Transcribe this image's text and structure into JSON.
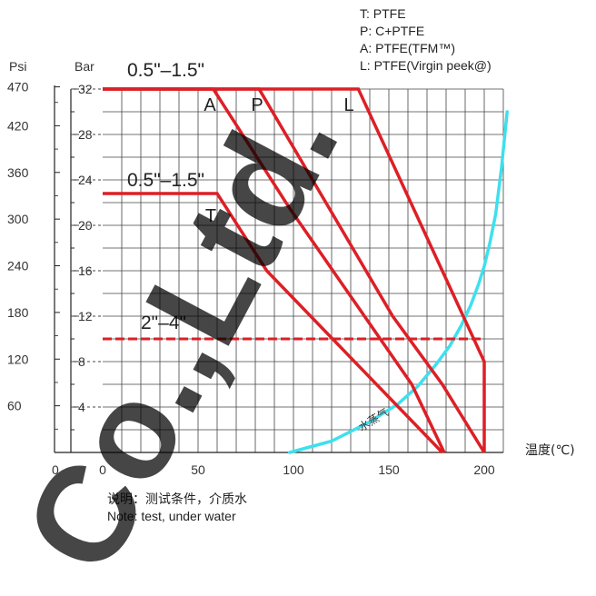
{
  "legend": [
    "T: PTFE",
    "P: C+PTFE",
    "A: PTFE(TFM™)",
    "L: PTFE(Virgin peek@)"
  ],
  "note": {
    "line1": "说明：测试条件，介质水",
    "line2": "Note: test, under water"
  },
  "watermark": "Co.,Ltd.",
  "colors": {
    "rating_lines": "#dd1f26",
    "steam_curve": "#3ee0ee",
    "grid": "#444444"
  },
  "chart_data": {
    "type": "line",
    "xlabel": "温度(℃)",
    "ylabel_left": "Psi",
    "ylabel_right": "Bar",
    "xlim": [
      0,
      210
    ],
    "ylim": [
      0,
      32
    ],
    "x_ticks": [
      0,
      50,
      100,
      150,
      200
    ],
    "bar_ticks": [
      4,
      8,
      12,
      16,
      20,
      24,
      28,
      32
    ],
    "psi_ticks": [
      60,
      120,
      180,
      240,
      300,
      360,
      420,
      470
    ],
    "psi_zero_label": "0",
    "grid": true,
    "series": [
      {
        "name": "T",
        "label": "T",
        "x": [
          0,
          60,
          86,
          178
        ],
        "y": [
          22.8,
          22.8,
          16,
          0
        ]
      },
      {
        "name": "A",
        "label": "A",
        "x": [
          0,
          58,
          98,
          162,
          179
        ],
        "y": [
          32,
          32,
          21.5,
          6,
          0
        ]
      },
      {
        "name": "P",
        "label": "P",
        "x": [
          0,
          82,
          152,
          178,
          200
        ],
        "y": [
          32,
          32,
          12,
          6,
          0
        ]
      },
      {
        "name": "L",
        "label": "L",
        "x": [
          0,
          134,
          200,
          200
        ],
        "y": [
          32,
          32,
          8,
          0
        ]
      },
      {
        "name": "",
        "label": "",
        "x": [
          0,
          200
        ],
        "y": [
          10,
          10
        ],
        "dashed": true
      }
    ],
    "range_labels": [
      {
        "text": "0.5\"–1.5\"",
        "x": 12,
        "y": 32
      },
      {
        "text": "0.5\"–1.5\"",
        "x": 12,
        "y": 22.8
      },
      {
        "text": "2\"–4\"",
        "x": 17,
        "y": 10
      }
    ],
    "steam_curve": {
      "label": "水蒸气",
      "x": [
        98,
        120,
        140,
        155,
        165,
        175,
        182,
        188,
        193,
        197,
        200,
        203,
        206,
        209,
        212
      ],
      "y": [
        0,
        1,
        2.7,
        4.3,
        5.8,
        7.8,
        9.4,
        11.2,
        13.0,
        14.8,
        16.4,
        18.5,
        21,
        25,
        30
      ]
    }
  }
}
